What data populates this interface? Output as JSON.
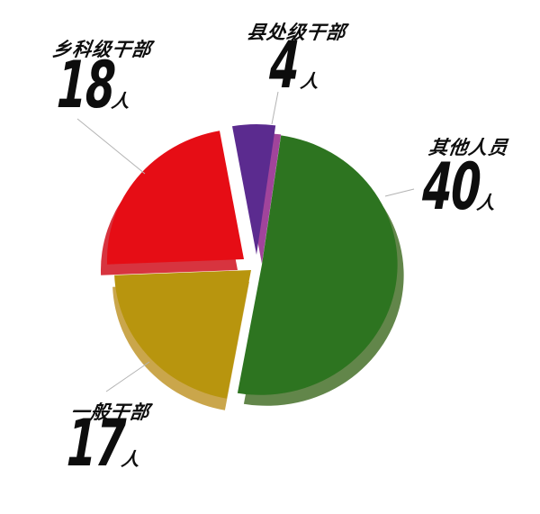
{
  "page": {
    "background": "#ffffff"
  },
  "chart_data": {
    "type": "pie",
    "title": "",
    "unit": "人",
    "start_angle_deg": 8,
    "direction": "clockwise",
    "style": "3d-exploded",
    "legend_position": "none",
    "callout_line_color": "#b3b3b3",
    "text_color": "#0d0d0d",
    "slices": [
      {
        "label": "其他人员",
        "value": 40,
        "color": "#2d7420",
        "side_color": "#62864a"
      },
      {
        "label": "一般干部",
        "value": 17,
        "color": "#b8950e",
        "side_color": "#caa64b"
      },
      {
        "label": "乡科级干部",
        "value": 18,
        "color": "#e60d15",
        "side_color": "#d7343f"
      },
      {
        "label": "县处级干部",
        "value": 4,
        "color": "#5b2b8f",
        "side_color": "#a1449b"
      }
    ]
  }
}
